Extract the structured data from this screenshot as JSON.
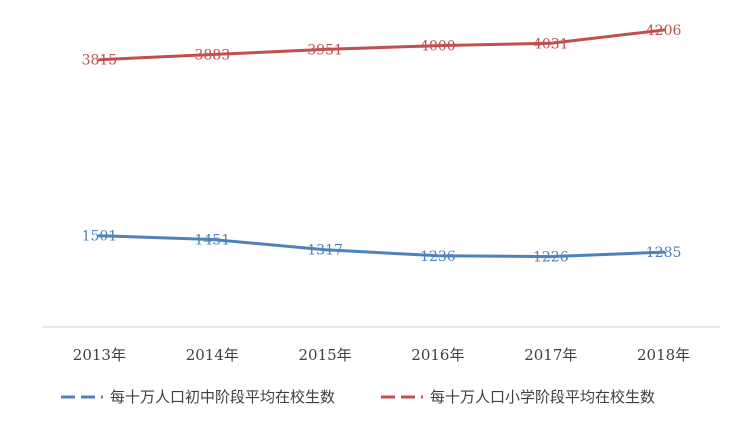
{
  "chart_data": {
    "type": "line",
    "categories": [
      "2013年",
      "2014年",
      "2015年",
      "2016年",
      "2017年",
      "2018年"
    ],
    "series": [
      {
        "name": "每十万人口初中阶段平均在校生数",
        "color": "#4F81BD",
        "values": [
          1501,
          1451,
          1317,
          1236,
          1226,
          1285
        ],
        "labels": [
          "1501",
          "1451",
          "1317",
          "1236",
          "1226",
          "1285"
        ]
      },
      {
        "name": "每十万人口小学阶段平均在校生数",
        "color": "#C0504D",
        "values": [
          3815,
          3883,
          3951,
          4000,
          4031,
          4206
        ],
        "labels": [
          "3815",
          "3883",
          "3951",
          "4000",
          "4031",
          "4206"
        ]
      }
    ],
    "title": "",
    "xlabel": "",
    "ylabel": "",
    "ylim": [
      300,
      4600
    ],
    "grid": false,
    "legend": "bottom",
    "axis_color": "#D9D9D9"
  }
}
